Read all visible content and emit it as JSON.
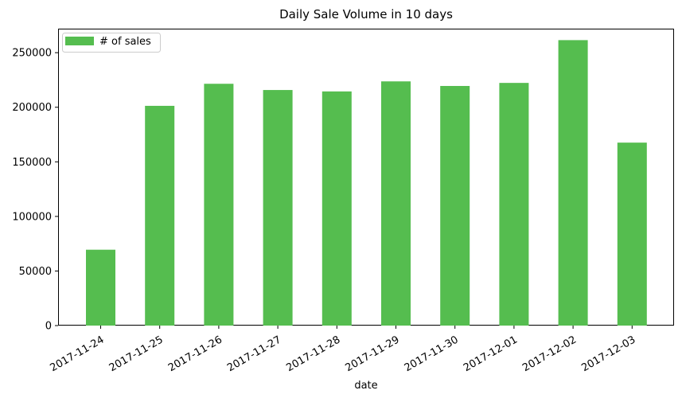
{
  "chart_data": {
    "type": "bar",
    "title": "Daily Sale Volume in 10 days",
    "xlabel": "date",
    "ylabel": "",
    "categories": [
      "2017-11-24",
      "2017-11-25",
      "2017-11-26",
      "2017-11-27",
      "2017-11-28",
      "2017-11-29",
      "2017-11-30",
      "2017-12-01",
      "2017-12-02",
      "2017-12-03"
    ],
    "series": [
      {
        "name": "# of sales",
        "color": "#55bd4f",
        "values": [
          69500,
          201300,
          221500,
          215800,
          214500,
          223700,
          219500,
          222300,
          261500,
          167600
        ]
      }
    ],
    "ylim": [
      0,
      272000
    ],
    "yticks": [
      0,
      50000,
      100000,
      150000,
      200000,
      250000
    ],
    "ytick_labels": [
      "0",
      "50000",
      "100000",
      "150000",
      "200000",
      "250000"
    ],
    "grid": false,
    "legend_position": "top-left",
    "x_tick_rotation": 30
  }
}
